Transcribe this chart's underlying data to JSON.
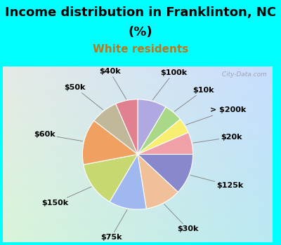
{
  "title_line1": "Income distribution in Franklinton, NC",
  "title_line2": "(%)",
  "subtitle": "White residents",
  "title_color": "#000000",
  "subtitle_color": "#b87820",
  "background_color": "#00ffff",
  "labels": [
    "$100k",
    "$10k",
    "> $200k",
    "$20k",
    "$125k",
    "$30k",
    "$75k",
    "$150k",
    "$60k",
    "$50k",
    "$40k"
  ],
  "values": [
    8.5,
    5.5,
    4.5,
    6.5,
    12.0,
    10.5,
    11.0,
    13.5,
    13.5,
    8.0,
    6.5
  ],
  "colors": [
    "#b0a8e0",
    "#a8d888",
    "#f8ee70",
    "#f0a0a8",
    "#8888cc",
    "#f0c098",
    "#a0b8f0",
    "#c8d870",
    "#f0a060",
    "#c0b898",
    "#e08090"
  ],
  "watermark": " City-Data.com",
  "label_fontsize": 8,
  "title_fontsize": 13,
  "subtitle_fontsize": 11
}
